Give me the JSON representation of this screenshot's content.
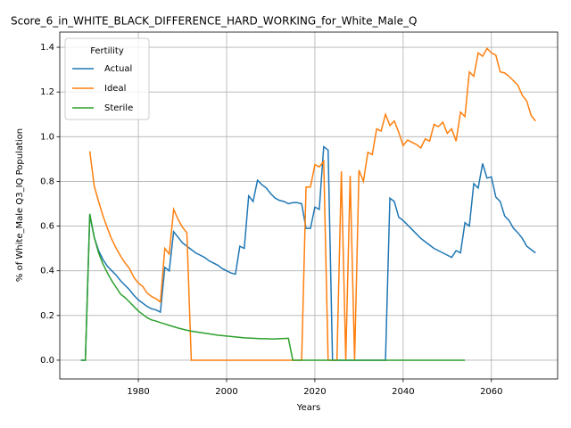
{
  "chart_data": {
    "type": "line",
    "title": "Score_6_in_WHITE_BLACK_DIFFERENCE_HARD_WORKING_for_White_Male_Q",
    "xlabel": "Years",
    "ylabel": "% of White_Male Q3_IQ Population",
    "x": [
      1967,
      1968,
      1969,
      1970,
      1971,
      1972,
      1973,
      1974,
      1975,
      1976,
      1977,
      1978,
      1979,
      1980,
      1981,
      1982,
      1983,
      1984,
      1985,
      1986,
      1987,
      1988,
      1989,
      1990,
      1991,
      1992,
      1993,
      1994,
      1995,
      1996,
      1997,
      1998,
      1999,
      2000,
      2001,
      2002,
      2003,
      2004,
      2005,
      2006,
      2007,
      2008,
      2009,
      2010,
      2011,
      2012,
      2013,
      2014,
      2015,
      2016,
      2017,
      2018,
      2019,
      2020,
      2021,
      2022,
      2023,
      2024,
      2025,
      2026,
      2027,
      2028,
      2029,
      2030,
      2031,
      2032,
      2033,
      2034,
      2035,
      2036,
      2037,
      2038,
      2039,
      2040,
      2041,
      2042,
      2043,
      2044,
      2045,
      2046,
      2047,
      2048,
      2049,
      2050,
      2051,
      2052,
      2053,
      2054,
      2055,
      2056,
      2057,
      2058,
      2059,
      2060,
      2061,
      2062,
      2063,
      2064,
      2065,
      2066,
      2067,
      2068,
      2069,
      2070
    ],
    "series": [
      {
        "name": "Actual",
        "color": "#1f77b4",
        "values": [
          0,
          0,
          0.65,
          0.55,
          0.49,
          0.45,
          0.42,
          0.4,
          0.38,
          0.355,
          0.335,
          0.315,
          0.29,
          0.27,
          0.255,
          0.24,
          0.23,
          0.225,
          0.215,
          0.415,
          0.4,
          0.575,
          0.55,
          0.525,
          0.51,
          0.495,
          0.48,
          0.47,
          0.46,
          0.445,
          0.435,
          0.425,
          0.41,
          0.4,
          0.39,
          0.385,
          0.51,
          0.5,
          0.735,
          0.71,
          0.805,
          0.785,
          0.77,
          0.745,
          0.725,
          0.715,
          0.71,
          0.7,
          0.705,
          0.705,
          0.7,
          0.59,
          0.59,
          0.685,
          0.675,
          0.955,
          0.94,
          0,
          0,
          0,
          0,
          0,
          0,
          0,
          0,
          0,
          0,
          0,
          0,
          0,
          0.725,
          0.71,
          0.64,
          0.625,
          0.605,
          0.585,
          0.565,
          0.545,
          0.53,
          0.515,
          0.5,
          0.49,
          0.48,
          0.47,
          0.46,
          0.49,
          0.48,
          0.615,
          0.6,
          0.79,
          0.77,
          0.88,
          0.815,
          0.82,
          0.73,
          0.71,
          0.645,
          0.625,
          0.59,
          0.57,
          0.545,
          0.51,
          0.495,
          0.48
        ]
      },
      {
        "name": "Ideal",
        "color": "#ff7f0e",
        "values": [
          null,
          null,
          0.935,
          0.78,
          0.71,
          0.645,
          0.59,
          0.54,
          0.5,
          0.465,
          0.435,
          0.41,
          0.37,
          0.345,
          0.33,
          0.3,
          0.285,
          0.275,
          0.26,
          0.5,
          0.475,
          0.675,
          0.63,
          0.595,
          0.57,
          0,
          0,
          0,
          0,
          0,
          0,
          0,
          0,
          0,
          0,
          0,
          0,
          0,
          0,
          0,
          0,
          0,
          0,
          0,
          0,
          0,
          0,
          0,
          0,
          0,
          0,
          0.775,
          0.775,
          0.875,
          0.865,
          0.89,
          0,
          0,
          0,
          0.845,
          0,
          0.825,
          0,
          0.85,
          0.8,
          0.93,
          0.92,
          1.035,
          1.025,
          1.1,
          1.05,
          1.07,
          1.02,
          0.96,
          0.985,
          0.975,
          0.965,
          0.95,
          0.99,
          0.98,
          1.055,
          1.045,
          1.065,
          1.015,
          1.035,
          0.98,
          1.11,
          1.09,
          1.29,
          1.27,
          1.375,
          1.36,
          1.395,
          1.375,
          1.365,
          1.29,
          1.285,
          1.27,
          1.25,
          1.23,
          1.185,
          1.16,
          1.095,
          1.07
        ]
      },
      {
        "name": "Sterile",
        "color": "#2ca02c",
        "values": [
          0,
          0,
          0.655,
          0.55,
          0.48,
          0.43,
          0.39,
          0.355,
          0.325,
          0.295,
          0.28,
          0.26,
          0.24,
          0.22,
          0.205,
          0.19,
          0.18,
          0.175,
          0.168,
          0.162,
          0.156,
          0.15,
          0.144,
          0.139,
          0.134,
          0.13,
          0.127,
          0.124,
          0.121,
          0.118,
          0.115,
          0.112,
          0.11,
          0.108,
          0.106,
          0.104,
          0.102,
          0.1,
          0.099,
          0.098,
          0.097,
          0.096,
          0.096,
          0.095,
          0.095,
          0.096,
          0.097,
          0.098,
          0,
          0,
          0,
          0,
          0,
          0,
          0,
          0,
          0,
          0,
          0,
          0,
          0,
          0,
          0,
          0,
          0,
          0,
          0,
          0,
          0,
          0,
          0,
          0,
          0,
          0,
          0,
          0,
          0,
          0,
          0,
          0,
          0,
          0,
          0,
          0,
          0,
          0,
          0,
          0,
          null,
          null,
          null,
          null,
          null,
          null,
          null,
          null,
          null,
          null,
          null,
          null,
          null,
          null,
          null,
          null
        ]
      }
    ],
    "xlim": [
      1962.2,
      2075
    ],
    "ylim": [
      -0.084,
      1.468
    ],
    "xticks": [
      1980,
      2000,
      2020,
      2040,
      2060
    ],
    "yticks": [
      {
        "value": 0,
        "label": "0.0"
      },
      0.2,
      0.4,
      0.6,
      0.8,
      {
        "value": 1,
        "label": "1.0"
      },
      1.2,
      1.4
    ],
    "grid": true,
    "legend_title": "Fertility",
    "legend": "upper left"
  }
}
